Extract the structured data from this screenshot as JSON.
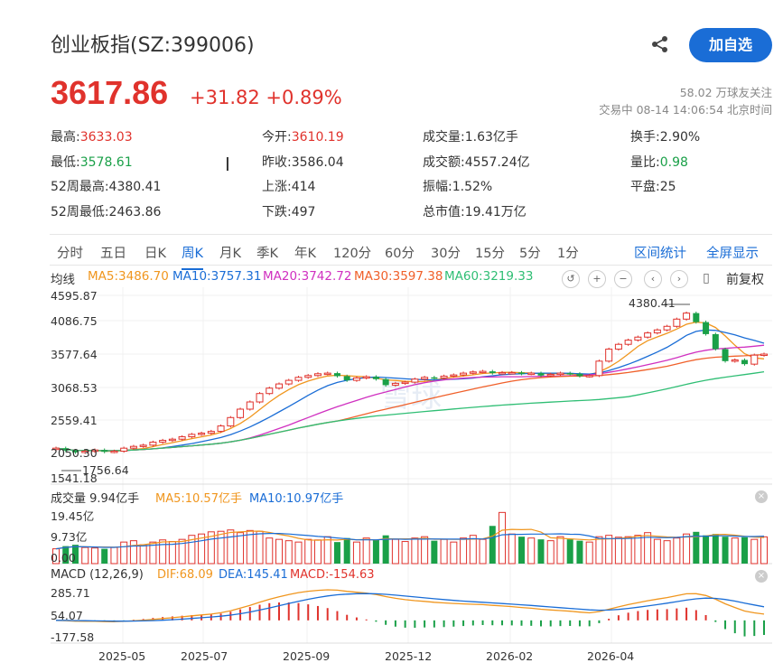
{
  "header": {
    "title": "创业板指(SZ:399006)",
    "follow_label": "加自选",
    "price": "3617.86",
    "change": "+31.82 +0.89%",
    "followers": "58.02 万球友关注",
    "status": "交易中 08-14 14:06:54 北京时间"
  },
  "quote": [
    {
      "label": "最高:",
      "value": "3633.03",
      "tone": "red"
    },
    {
      "label": "今开:",
      "value": "3610.19",
      "tone": "red"
    },
    {
      "label": "成交量:",
      "value": "1.63亿手",
      "tone": "plain"
    },
    {
      "label": "换手:",
      "value": "2.90%",
      "tone": "plain"
    },
    {
      "label": "最低:",
      "value": "3578.61",
      "tone": "green"
    },
    {
      "label": "昨收:",
      "value": "3586.04",
      "tone": "plain"
    },
    {
      "label": "成交额:",
      "value": "4557.24亿",
      "tone": "plain"
    },
    {
      "label": "量比:",
      "value": "0.98",
      "tone": "green"
    },
    {
      "label": "52周最高:",
      "value": "4380.41",
      "tone": "plain"
    },
    {
      "label": "上涨:",
      "value": "414",
      "tone": "plain"
    },
    {
      "label": "振幅:",
      "value": "1.52%",
      "tone": "plain"
    },
    {
      "label": "平盘:",
      "value": "25",
      "tone": "plain"
    },
    {
      "label": "52周最低:",
      "value": "2463.86",
      "tone": "plain"
    },
    {
      "label": "下跌:",
      "value": "497",
      "tone": "plain"
    },
    {
      "label": "总市值:",
      "value": "19.41万亿",
      "tone": "plain"
    }
  ],
  "tabs": [
    "分时",
    "五日",
    "日K",
    "周K",
    "月K",
    "季K",
    "年K",
    "120分",
    "60分",
    "30分",
    "15分",
    "5分",
    "1分"
  ],
  "active_tab": "周K",
  "tab_actions": [
    "区间统计",
    "全屏显示"
  ],
  "ma_legend": {
    "label": "均线",
    "items": [
      {
        "text": "MA5:3486.70",
        "color": "#f0961e"
      },
      {
        "text": "MA10:3757.31",
        "color": "#1a6dd6"
      },
      {
        "text": "MA20:3742.72",
        "color": "#d030c0"
      },
      {
        "text": "MA30:3597.38",
        "color": "#f0602a"
      },
      {
        "text": "MA60:3219.33",
        "color": "#2fbe74"
      }
    ]
  },
  "chart_controls": [
    "undo-icon",
    "zoom-in-icon",
    "zoom-out-icon",
    "prev-icon",
    "next-icon",
    "drag-icon"
  ],
  "adjust_label": "前复权",
  "watermark": "雪球",
  "price_axis": [
    "4595.87",
    "4086.75",
    "3577.64",
    "3068.53",
    "2559.41",
    "2050.30",
    "1541.18"
  ],
  "annotations": {
    "high": "4380.41",
    "low": "1756.64"
  },
  "volume_panel": {
    "label": "成交量 9.94亿手",
    "ma5": "MA5:10.57亿手",
    "ma10": "MA10:10.97亿手",
    "axis": [
      "19.45亿",
      "9.73亿",
      "0.00"
    ]
  },
  "macd_panel": {
    "label": "MACD (12,26,9)",
    "dif": "DIF:68.09",
    "dea": "DEA:145.41",
    "macd": "MACD:-154.63",
    "axis": [
      "285.71",
      "54.07",
      "-177.58"
    ]
  },
  "x_axis": [
    "2025-05",
    "2025-07",
    "2025-09",
    "2025-12",
    "2026-02",
    "2026-04"
  ],
  "colors": {
    "up": "#e0322c",
    "down": "#1aa048",
    "accent": "#1a6dd6"
  },
  "chart_data": {
    "type": "candlestick",
    "interval": "weekly",
    "approximate": true,
    "close": [
      2050,
      2010,
      1980,
      2000,
      2020,
      1990,
      2000,
      2050,
      2080,
      2100,
      2150,
      2180,
      2200,
      2240,
      2280,
      2300,
      2330,
      2420,
      2560,
      2700,
      2820,
      2960,
      3050,
      3120,
      3180,
      3230,
      3260,
      3290,
      3300,
      3250,
      3180,
      3220,
      3240,
      3200,
      3100,
      3130,
      3150,
      3200,
      3230,
      3220,
      3250,
      3270,
      3300,
      3320,
      3330,
      3300,
      3310,
      3310,
      3290,
      3300,
      3260,
      3280,
      3300,
      3290,
      3250,
      3260,
      3500,
      3700,
      3780,
      3850,
      3900,
      3970,
      4020,
      4080,
      4200,
      4300,
      4150,
      3950,
      3700,
      3500,
      3520,
      3450,
      3600,
      3617
    ],
    "volume": [
      5.5,
      6.5,
      7,
      6,
      5.8,
      5.5,
      6,
      8,
      8.5,
      7,
      8,
      8.8,
      8.2,
      9,
      10.5,
      11,
      11.8,
      12,
      12.5,
      11.5,
      12.3,
      12,
      9.5,
      9,
      8.5,
      8,
      9,
      8.8,
      10,
      8,
      9.5,
      8,
      9.5,
      8.8,
      10.5,
      9,
      8.2,
      9.5,
      10,
      8.5,
      9,
      8,
      9.5,
      10.5,
      9,
      14,
      19,
      11,
      10,
      9.5,
      9,
      8.5,
      10,
      9,
      8.5,
      8,
      10,
      10.5,
      9.8,
      10,
      10.5,
      11.5,
      9,
      8.5,
      9.5,
      11,
      11.8,
      10.5,
      11,
      10,
      9.5,
      9.8,
      9,
      9.94
    ],
    "ma5": [
      3486.7
    ],
    "ma10": [
      3757.31
    ],
    "ma20": [
      3742.72
    ],
    "ma30": [
      3597.38
    ],
    "ma60": [
      3219.33
    ],
    "macd": {
      "dif": 68.09,
      "dea": 145.41,
      "macd": -154.63
    }
  }
}
